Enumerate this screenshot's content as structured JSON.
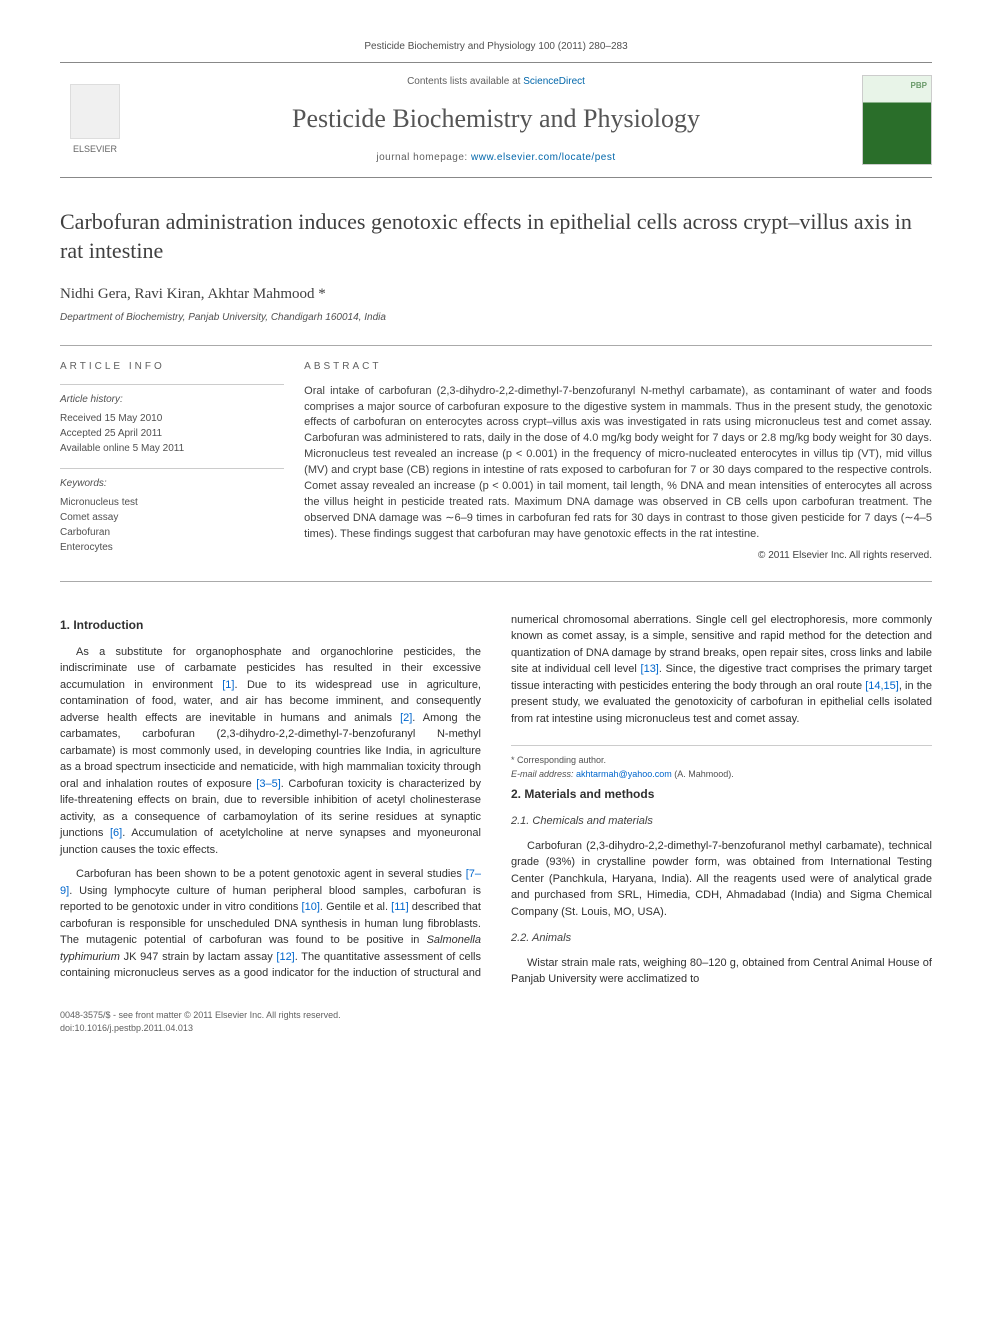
{
  "journal_header": {
    "citation": "Pesticide Biochemistry and Physiology 100 (2011) 280–283",
    "contents_prefix": "Contents lists available at ",
    "contents_link": "ScienceDirect",
    "journal_name": "Pesticide Biochemistry and Physiology",
    "homepage_prefix": "journal homepage: ",
    "homepage_url": "www.elsevier.com/locate/pest",
    "elsevier_label": "ELSEVIER"
  },
  "article": {
    "title": "Carbofuran administration induces genotoxic effects in epithelial cells across crypt–villus axis in rat intestine",
    "authors": "Nidhi Gera, Ravi Kiran, Akhtar Mahmood *",
    "affiliation": "Department of Biochemistry, Panjab University, Chandigarh 160014, India"
  },
  "article_info": {
    "label": "ARTICLE INFO",
    "history_heading": "Article history:",
    "received": "Received 15 May 2010",
    "accepted": "Accepted 25 April 2011",
    "available": "Available online 5 May 2011",
    "keywords_heading": "Keywords:",
    "kw1": "Micronucleus test",
    "kw2": "Comet assay",
    "kw3": "Carbofuran",
    "kw4": "Enterocytes"
  },
  "abstract": {
    "label": "ABSTRACT",
    "text": "Oral intake of carbofuran (2,3-dihydro-2,2-dimethyl-7-benzofuranyl N-methyl carbamate), as contaminant of water and foods comprises a major source of carbofuran exposure to the digestive system in mammals. Thus in the present study, the genotoxic effects of carbofuran on enterocytes across crypt–villus axis was investigated in rats using micronucleus test and comet assay. Carbofuran was administered to rats, daily in the dose of 4.0 mg/kg body weight for 7 days or 2.8 mg/kg body weight for 30 days. Micronucleus test revealed an increase (p < 0.001) in the frequency of micro-nucleated enterocytes in villus tip (VT), mid villus (MV) and crypt base (CB) regions in intestine of rats exposed to carbofuran for 7 or 30 days compared to the respective controls. Comet assay revealed an increase (p < 0.001) in tail moment, tail length, % DNA and mean intensities of enterocytes all across the villus height in pesticide treated rats. Maximum DNA damage was observed in CB cells upon carbofuran treatment. The observed DNA damage was ∼6–9 times in carbofuran fed rats for 30 days in contrast to those given pesticide for 7 days (∼4–5 times). These findings suggest that carbofuran may have genotoxic effects in the rat intestine.",
    "copyright": "© 2011 Elsevier Inc. All rights reserved."
  },
  "body": {
    "h1_intro": "1. Introduction",
    "p1a": "As a substitute for organophosphate and organochlorine pesticides, the indiscriminate use of carbamate pesticides has resulted in their excessive accumulation in environment ",
    "r1": "[1]",
    "p1b": ". Due to its widespread use in agriculture, contamination of food, water, and air has become imminent, and consequently adverse health effects are inevitable in humans and animals ",
    "r2": "[2]",
    "p1c": ". Among the carbamates, carbofuran (2,3-dihydro-2,2-dimethyl-7-benzofuranyl N-methyl carbamate) is most commonly used, in developing countries like India, in agriculture as a broad spectrum insecticide and nematicide, with high mammalian toxicity through oral and inhalation routes of exposure ",
    "r3_5": "[3–5]",
    "p1d": ". Carbofuran toxicity is characterized by life-threatening effects on brain, due to reversible inhibition of acetyl cholinesterase activity, as a consequence of carbamoylation of its serine residues at synaptic junctions ",
    "r6": "[6]",
    "p1e": ". Accumulation of acetylcholine at nerve synapses and myoneuronal junction causes the toxic effects.",
    "p2a": "Carbofuran has been shown to be a potent genotoxic agent in several studies ",
    "r7_9": "[7–9]",
    "p2b": ". Using lymphocyte culture of human peripheral blood samples, carbofuran is reported to be genotoxic under in vitro conditions ",
    "r10": "[10]",
    "p2c": ". Gentile et al. ",
    "r11": "[11]",
    "p2d": " described that carbofuran is responsible for unscheduled DNA synthesis in human lung fibroblasts. The mutagenic potential of carbofuran was found to be positive in ",
    "species": "Salmonella typhimurium",
    "p2e": " JK 947 strain by lactam assay ",
    "r12": "[12]",
    "p2f": ". The quantitative assessment of cells containing micronucleus serves as a good indicator for the induction of structural and numerical chromosomal aberrations. Single cell gel electrophoresis, more commonly known as comet assay, is a simple, sensitive and rapid method for the detection and quantization of DNA damage by strand breaks, open repair sites, cross links and labile site at individual cell level ",
    "r13": "[13]",
    "p2g": ". Since, the digestive tract comprises the primary target tissue interacting with pesticides entering the body through an oral route ",
    "r14_15": "[14,15]",
    "p2h": ", in the present study, we evaluated the genotoxicity of carbofuran in epithelial cells isolated from rat intestine using micronucleus test and comet assay.",
    "h2_methods": "2. Materials and methods",
    "h2_1": "2.1. Chemicals and materials",
    "p3": "Carbofuran (2,3-dihydro-2,2-dimethyl-7-benzofuranol methyl carbamate), technical grade (93%) in crystalline powder form, was obtained from International Testing Center (Panchkula, Haryana, India). All the reagents used were of analytical grade and purchased from SRL, Himedia, CDH, Ahmadabad (India) and Sigma Chemical Company (St. Louis, MO, USA).",
    "h2_2": "2.2. Animals",
    "p4": "Wistar strain male rats, weighing 80–120 g, obtained from Central Animal House of Panjab University were acclimatized to"
  },
  "footnote": {
    "corr": "* Corresponding author.",
    "email_label": "E-mail address: ",
    "email": "akhtarmah@yahoo.com",
    "email_suffix": " (A. Mahmood)."
  },
  "doc_footer": {
    "line1": "0048-3575/$ - see front matter © 2011 Elsevier Inc. All rights reserved.",
    "line2": "doi:10.1016/j.pestbp.2011.04.013"
  }
}
